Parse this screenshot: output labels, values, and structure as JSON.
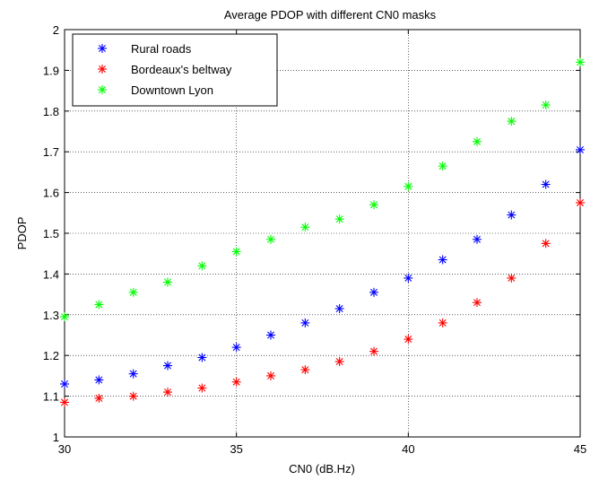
{
  "chart_data": {
    "type": "scatter",
    "title": "Average PDOP with different CN0 masks",
    "xlabel": "CN0 (dB.Hz)",
    "ylabel": "PDOP",
    "xlim": [
      30,
      45
    ],
    "ylim": [
      1,
      2
    ],
    "x_ticks": [
      30,
      35,
      40,
      45
    ],
    "y_ticks": [
      1,
      1.1,
      1.2,
      1.3,
      1.4,
      1.5,
      1.6,
      1.7,
      1.8,
      1.9,
      2
    ],
    "x_tick_labels": [
      "30",
      "35",
      "40",
      "45"
    ],
    "y_tick_labels": [
      "1",
      "1.1",
      "1.2",
      "1.3",
      "1.4",
      "1.5",
      "1.6",
      "1.7",
      "1.8",
      "1.9",
      "2"
    ],
    "grid": true,
    "legend_position": "top-left",
    "marker": "asterisk",
    "x": [
      30,
      31,
      32,
      33,
      34,
      35,
      36,
      37,
      38,
      39,
      40,
      41,
      42,
      43,
      44,
      45
    ],
    "series": [
      {
        "name": "Rural roads",
        "color": "#0000ff",
        "values": [
          1.13,
          1.14,
          1.155,
          1.175,
          1.195,
          1.22,
          1.25,
          1.28,
          1.315,
          1.355,
          1.39,
          1.435,
          1.485,
          1.545,
          1.62,
          1.705
        ]
      },
      {
        "name": "Bordeaux's beltway",
        "color": "#ff0000",
        "values": [
          1.085,
          1.095,
          1.1,
          1.11,
          1.12,
          1.135,
          1.15,
          1.165,
          1.185,
          1.21,
          1.24,
          1.28,
          1.33,
          1.39,
          1.475,
          1.575
        ]
      },
      {
        "name": "Downtown Lyon",
        "color": "#00ff00",
        "values": [
          1.295,
          1.325,
          1.355,
          1.38,
          1.42,
          1.455,
          1.485,
          1.515,
          1.535,
          1.57,
          1.615,
          1.665,
          1.725,
          1.775,
          1.815,
          1.92
        ]
      }
    ]
  }
}
